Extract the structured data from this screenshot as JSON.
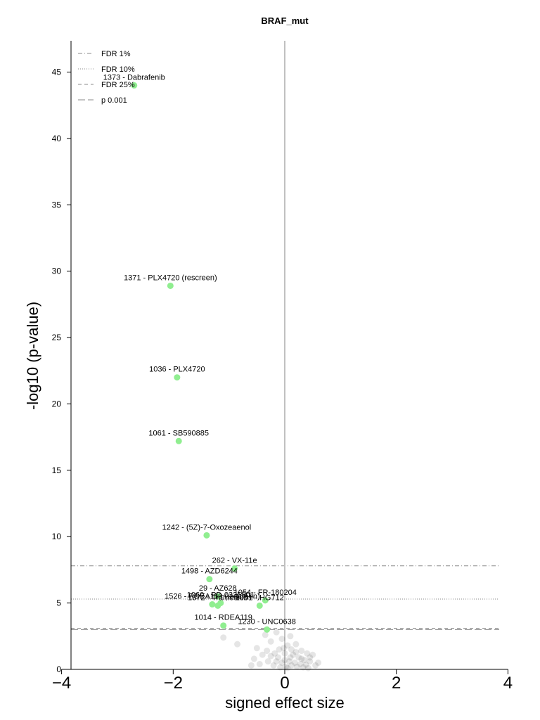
{
  "chart_data": {
    "type": "scatter",
    "title": "BRAF_mut",
    "xlabel": "signed effect size",
    "ylabel": "-log10 (p-value)",
    "xlim": [
      -4.6,
      4.6
    ],
    "ylim": [
      0,
      49
    ],
    "xticks": [
      -4,
      -2,
      0,
      2,
      4
    ],
    "xtick_labels": [
      "−4",
      "−2",
      "0",
      "2",
      "4"
    ],
    "yticks": [
      0,
      5,
      10,
      15,
      20,
      25,
      30,
      35,
      40,
      45
    ],
    "ytick_labels": [
      "0",
      "5",
      "10",
      "15",
      "20",
      "25",
      "30",
      "35",
      "40",
      "45"
    ],
    "grid": false,
    "zero_line": true,
    "legend": {
      "placement": "top-left",
      "entries": [
        {
          "label": "FDR 1%",
          "style": "dashdot"
        },
        {
          "label": "FDR 10%",
          "style": "dotted"
        },
        {
          "label": "FDR 25%",
          "style": "dashed"
        },
        {
          "label": "p 0.001",
          "style": "longdash"
        }
      ]
    },
    "thresholds": [
      {
        "name": "FDR 1%",
        "y": 7.8,
        "style": "dashdot"
      },
      {
        "name": "FDR 10%",
        "y": 5.3,
        "style": "dotted"
      },
      {
        "name": "FDR 25%",
        "y": 3.1,
        "style": "dashed"
      },
      {
        "name": "p 0.001",
        "y": 3.0,
        "style": "longdash"
      }
    ],
    "colors": {
      "significant": "#90ee90",
      "background": "#000000",
      "axis": "#000000",
      "zero_line": "#c0c0c0",
      "threshold": "#8a8a8a"
    },
    "significant_points": [
      {
        "label": "1373 - Dabrafenib",
        "x": -2.7,
        "y": 44.0
      },
      {
        "label": "1371 - PLX4720 (rescreen)",
        "x": -2.05,
        "y": 28.9
      },
      {
        "label": "1036 - PLX4720",
        "x": -1.93,
        "y": 22.0
      },
      {
        "label": "1061 - SB590885",
        "x": -1.9,
        "y": 17.2
      },
      {
        "label": "1242 - (5Z)-7-Oxozeaenol",
        "x": -1.4,
        "y": 10.1
      },
      {
        "label": "262 - VX-11e",
        "x": -0.9,
        "y": 7.6
      },
      {
        "label": "1498 - AZD6244",
        "x": -1.35,
        "y": 6.8
      },
      {
        "label": "29 - AZ628",
        "x": -1.2,
        "y": 5.5
      },
      {
        "label": "1526 - RDEA119 (rescreen)",
        "x": -1.3,
        "y": 4.9
      },
      {
        "label": "1372 - Trametinib",
        "x": -1.2,
        "y": 4.8
      },
      {
        "label": "1060 - PD-0325901",
        "x": -1.15,
        "y": 5.0
      },
      {
        "label": "1054 - FR-180204",
        "x": -0.35,
        "y": 5.2
      },
      {
        "label": "1051 - HG712",
        "x": -0.45,
        "y": 4.8
      },
      {
        "label": "1014 - RDEA119",
        "x": -1.1,
        "y": 3.3
      },
      {
        "label": "1230 - UNC0638",
        "x": -0.32,
        "y": 3.0
      }
    ],
    "background_points": [
      {
        "x": -1.1,
        "y": 2.4
      },
      {
        "x": -0.85,
        "y": 1.9
      },
      {
        "x": -0.5,
        "y": 1.6
      },
      {
        "x": -0.35,
        "y": 2.6
      },
      {
        "x": -0.25,
        "y": 2.1
      },
      {
        "x": -0.15,
        "y": 2.8
      },
      {
        "x": -0.1,
        "y": 1.5
      },
      {
        "x": -0.05,
        "y": 2.3
      },
      {
        "x": 0.0,
        "y": 1.2
      },
      {
        "x": 0.05,
        "y": 1.8
      },
      {
        "x": 0.1,
        "y": 2.5
      },
      {
        "x": 0.15,
        "y": 1.1
      },
      {
        "x": 0.2,
        "y": 1.9
      },
      {
        "x": 0.25,
        "y": 0.9
      },
      {
        "x": 0.3,
        "y": 1.4
      },
      {
        "x": 0.35,
        "y": 0.7
      },
      {
        "x": 0.4,
        "y": 1.2
      },
      {
        "x": 0.45,
        "y": 0.6
      },
      {
        "x": 0.5,
        "y": 1.1
      },
      {
        "x": 0.6,
        "y": 0.5
      },
      {
        "x": 0.45,
        "y": 0.9
      },
      {
        "x": -0.45,
        "y": 0.4
      },
      {
        "x": -0.55,
        "y": 0.8
      },
      {
        "x": -0.4,
        "y": 1.1
      },
      {
        "x": -0.3,
        "y": 0.6
      },
      {
        "x": -0.2,
        "y": 0.3
      },
      {
        "x": -0.12,
        "y": 0.9
      },
      {
        "x": -0.05,
        "y": 0.5
      },
      {
        "x": 0.02,
        "y": 0.2
      },
      {
        "x": 0.08,
        "y": 0.6
      },
      {
        "x": 0.12,
        "y": 0.3
      },
      {
        "x": 0.18,
        "y": 0.5
      },
      {
        "x": 0.22,
        "y": 0.2
      },
      {
        "x": 0.28,
        "y": 0.4
      },
      {
        "x": 0.33,
        "y": 0.15
      },
      {
        "x": 0.38,
        "y": 0.35
      },
      {
        "x": 0.42,
        "y": 0.1
      },
      {
        "x": 0.05,
        "y": 0.1
      },
      {
        "x": -0.08,
        "y": 0.15
      },
      {
        "x": -0.15,
        "y": 0.6
      },
      {
        "x": -0.25,
        "y": 1.0
      },
      {
        "x": -0.32,
        "y": 1.4
      },
      {
        "x": 0.0,
        "y": 0.7
      },
      {
        "x": 0.1,
        "y": 0.9
      },
      {
        "x": 0.2,
        "y": 1.3
      },
      {
        "x": -0.6,
        "y": 0.3
      },
      {
        "x": 0.55,
        "y": 0.3
      },
      {
        "x": 0.3,
        "y": 0.8
      },
      {
        "x": -0.02,
        "y": 1.6
      },
      {
        "x": 0.12,
        "y": 1.5
      },
      {
        "x": -0.18,
        "y": 1.2
      }
    ]
  }
}
